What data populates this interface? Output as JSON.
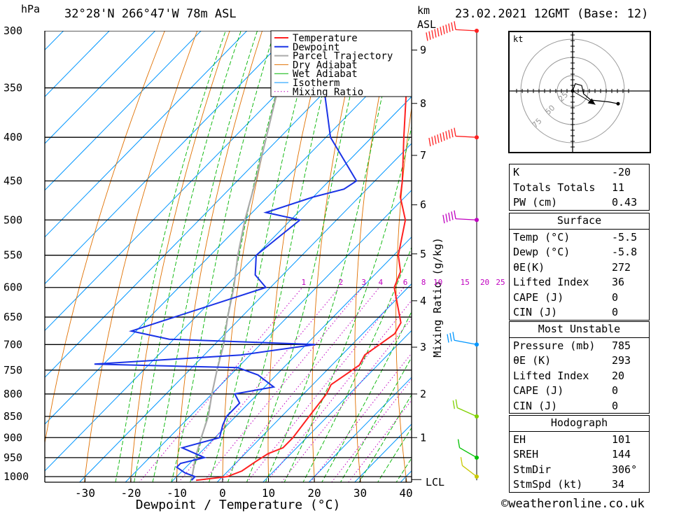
{
  "header": {
    "pressure_unit": "hPa",
    "location": "32°28'N 266°47'W 78m ASL",
    "height_unit": "km",
    "height_ref": "ASL",
    "datetime": "23.02.2021 12GMT (Base: 12)"
  },
  "chart_data": {
    "type": "skew-t log-p",
    "xlabel": "Dewpoint / Temperature (°C)",
    "ylabel": "hPa",
    "y2label": "Mixing Ratio (g/kg)",
    "xlim": [
      -40,
      40
    ],
    "pressure_range": [
      1000,
      300
    ],
    "pressure_levels": [
      300,
      350,
      400,
      450,
      500,
      550,
      600,
      650,
      700,
      750,
      800,
      850,
      900,
      950,
      1000
    ],
    "temperature_ticks": [
      -30,
      -20,
      -10,
      0,
      10,
      20,
      30,
      40
    ],
    "height_ticks_km": [
      {
        "km": "1",
        "p": 900
      },
      {
        "km": "2",
        "p": 800
      },
      {
        "km": "3",
        "p": 705
      },
      {
        "km": "4",
        "p": 622
      },
      {
        "km": "5",
        "p": 548
      },
      {
        "km": "6",
        "p": 480
      },
      {
        "km": "7",
        "p": 420
      },
      {
        "km": "8",
        "p": 365
      },
      {
        "km": "9",
        "p": 316
      }
    ],
    "lcl_label": "LCL",
    "lcl_pressure": 1010,
    "mixing_ratio_labels": [
      "1",
      "2",
      "3",
      "4",
      "6",
      "8",
      "10",
      "15",
      "20",
      "25"
    ],
    "legend": [
      "Temperature",
      "Dewpoint",
      "Parcel Trajectory",
      "Dry Adiabat",
      "Wet Adiabat",
      "Isotherm",
      "Mixing Ratio"
    ],
    "colors": {
      "temperature": "#ff2020",
      "dewpoint": "#1a33e6",
      "parcel": "#aaaaaa",
      "dry_adiabat": "#e07000",
      "wet_adiabat": "#00b400",
      "isotherm": "#0096ff",
      "mixing_ratio": "#c000c0"
    },
    "temperature_profile": [
      {
        "p": 1010,
        "t": -5
      },
      {
        "p": 1000,
        "t": 1
      },
      {
        "p": 985,
        "t": 3
      },
      {
        "p": 960,
        "t": 4
      },
      {
        "p": 940,
        "t": 5
      },
      {
        "p": 925,
        "t": 7
      },
      {
        "p": 900,
        "t": 7
      },
      {
        "p": 850,
        "t": 6
      },
      {
        "p": 800,
        "t": 5
      },
      {
        "p": 780,
        "t": 4
      },
      {
        "p": 760,
        "t": 5
      },
      {
        "p": 740,
        "t": 6
      },
      {
        "p": 720,
        "t": 5
      },
      {
        "p": 700,
        "t": 6
      },
      {
        "p": 680,
        "t": 7
      },
      {
        "p": 660,
        "t": 6
      },
      {
        "p": 600,
        "t": -3
      },
      {
        "p": 575,
        "t": -5
      },
      {
        "p": 550,
        "t": -9
      },
      {
        "p": 500,
        "t": -15
      },
      {
        "p": 470,
        "t": -21
      },
      {
        "p": 450,
        "t": -24
      },
      {
        "p": 400,
        "t": -33
      },
      {
        "p": 350,
        "t": -43
      },
      {
        "p": 320,
        "t": -50
      },
      {
        "p": 305,
        "t": -52
      },
      {
        "p": 300,
        "t": -53
      }
    ],
    "dewpoint_profile": [
      {
        "p": 1010,
        "t": -6
      },
      {
        "p": 1000,
        "t": -6
      },
      {
        "p": 990,
        "t": -9
      },
      {
        "p": 975,
        "t": -12
      },
      {
        "p": 965,
        "t": -12
      },
      {
        "p": 950,
        "t": -8
      },
      {
        "p": 925,
        "t": -15
      },
      {
        "p": 900,
        "t": -9
      },
      {
        "p": 870,
        "t": -11
      },
      {
        "p": 850,
        "t": -12
      },
      {
        "p": 820,
        "t": -12
      },
      {
        "p": 800,
        "t": -15
      },
      {
        "p": 785,
        "t": -8
      },
      {
        "p": 760,
        "t": -14
      },
      {
        "p": 745,
        "t": -20
      },
      {
        "p": 738,
        "t": -52
      },
      {
        "p": 720,
        "t": -22
      },
      {
        "p": 700,
        "t": -8
      },
      {
        "p": 690,
        "t": -41
      },
      {
        "p": 675,
        "t": -51
      },
      {
        "p": 600,
        "t": -31
      },
      {
        "p": 580,
        "t": -36
      },
      {
        "p": 550,
        "t": -40
      },
      {
        "p": 500,
        "t": -38
      },
      {
        "p": 490,
        "t": -47
      },
      {
        "p": 470,
        "t": -40
      },
      {
        "p": 460,
        "t": -35
      },
      {
        "p": 450,
        "t": -34
      },
      {
        "p": 400,
        "t": -49
      },
      {
        "p": 350,
        "t": -61
      },
      {
        "p": 320,
        "t": -68
      },
      {
        "p": 300,
        "t": -78
      }
    ],
    "parcel_profile": [
      {
        "p": 1010,
        "t": -6
      },
      {
        "p": 950,
        "t": -10
      },
      {
        "p": 900,
        "t": -13
      },
      {
        "p": 850,
        "t": -16
      },
      {
        "p": 800,
        "t": -20
      },
      {
        "p": 750,
        "t": -24
      },
      {
        "p": 700,
        "t": -28
      },
      {
        "p": 650,
        "t": -33
      },
      {
        "p": 600,
        "t": -38
      },
      {
        "p": 550,
        "t": -44
      },
      {
        "p": 500,
        "t": -50
      },
      {
        "p": 450,
        "t": -56
      },
      {
        "p": 400,
        "t": -63
      },
      {
        "p": 350,
        "t": -71
      },
      {
        "p": 300,
        "t": -80
      }
    ],
    "wind_barbs": [
      {
        "p": 300,
        "color": "#ff2020",
        "dir": 250,
        "speed": 110
      },
      {
        "p": 400,
        "color": "#ff2020",
        "dir": 250,
        "speed": 100
      },
      {
        "p": 500,
        "color": "#c000c0",
        "dir": 250,
        "speed": 55
      },
      {
        "p": 700,
        "color": "#0096ff",
        "dir": 270,
        "speed": 30
      },
      {
        "p": 850,
        "color": "#80d000",
        "dir": 300,
        "speed": 20
      },
      {
        "p": 950,
        "color": "#00c000",
        "dir": 310,
        "speed": 15
      },
      {
        "p": 1000,
        "color": "#c8c800",
        "dir": 320,
        "speed": 10
      }
    ]
  },
  "hodograph": {
    "unit": "kt",
    "rings": [
      "25",
      "50",
      "75"
    ],
    "trace": [
      [
        0,
        0
      ],
      [
        3,
        8
      ],
      [
        10,
        6
      ],
      [
        12,
        -3
      ],
      [
        20,
        -10
      ],
      [
        40,
        -12
      ],
      [
        50,
        -14
      ]
    ],
    "storm_motion": [
      25,
      -15
    ]
  },
  "indices": {
    "general": [
      {
        "k": "K",
        "v": "-20"
      },
      {
        "k": "Totals Totals",
        "v": "11"
      },
      {
        "k": "PW (cm)",
        "v": "0.43"
      }
    ],
    "surface_title": "Surface",
    "surface": [
      {
        "k": "Temp (°C)",
        "v": "-5.5"
      },
      {
        "k": "Dewp (°C)",
        "v": "-5.8"
      },
      {
        "k": "θE(K)",
        "v": "272"
      },
      {
        "k": "Lifted Index",
        "v": "36"
      },
      {
        "k": "CAPE (J)",
        "v": "0"
      },
      {
        "k": "CIN (J)",
        "v": "0"
      }
    ],
    "unstable_title": "Most Unstable",
    "unstable": [
      {
        "k": "Pressure (mb)",
        "v": "785"
      },
      {
        "k": "θE (K)",
        "v": "293"
      },
      {
        "k": "Lifted Index",
        "v": "20"
      },
      {
        "k": "CAPE (J)",
        "v": "0"
      },
      {
        "k": "CIN (J)",
        "v": "0"
      }
    ],
    "hodograph_title": "Hodograph",
    "hodograph": [
      {
        "k": "EH",
        "v": "101"
      },
      {
        "k": "SREH",
        "v": "144"
      },
      {
        "k": "StmDir",
        "v": "306°"
      },
      {
        "k": "StmSpd (kt)",
        "v": "34"
      }
    ]
  },
  "footer": {
    "copyright": "©weatheronline.co.uk"
  }
}
